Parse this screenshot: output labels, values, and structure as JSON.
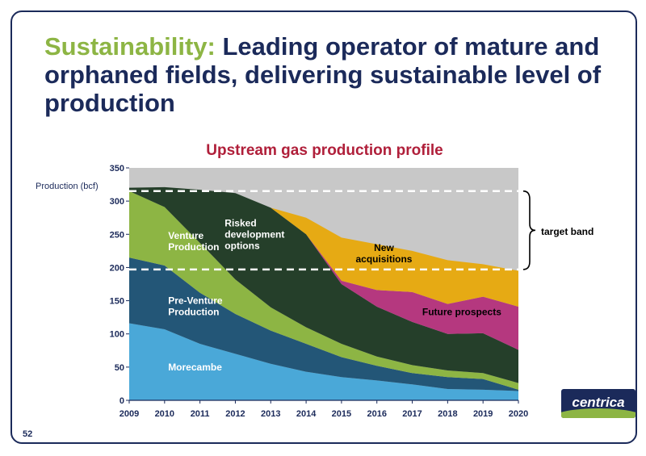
{
  "slide": {
    "title_accent": "Sustainability:",
    "title_rest": "Leading operator of mature and orphaned fields, delivering sustainable level of production",
    "page_number": "52",
    "logo_text": "centrica"
  },
  "colors": {
    "Morecambe": "#4aa8d8",
    "Pre-Venture Production": "#235677",
    "Venture Production": "#8db544",
    "Risked development options": "#253f2a",
    "Future prospects": "#b5387f",
    "New acquisitions": "#e6aa14",
    "background": "#c8c8c8",
    "target_line": "#ffffff"
  },
  "chart_data": {
    "type": "area",
    "title": "Upstream gas production profile",
    "ylabel": "Production (bcf)",
    "xlabel": "",
    "x": [
      2009,
      2010,
      2011,
      2012,
      2013,
      2014,
      2015,
      2016,
      2017,
      2018,
      2019,
      2020
    ],
    "ylim": [
      0,
      350
    ],
    "yticks": [
      0,
      50,
      100,
      150,
      200,
      250,
      300,
      350
    ],
    "stacked": true,
    "series": [
      {
        "name": "Morecambe",
        "label_lines": [
          "Morecambe"
        ],
        "values": [
          116,
          107,
          85,
          70,
          55,
          43,
          35,
          30,
          24,
          17,
          16,
          14
        ],
        "label_pos": [
          2010.1,
          45
        ]
      },
      {
        "name": "Pre-Venture Production",
        "label_lines": [
          "Pre-Venture",
          "Production"
        ],
        "values": [
          99,
          96,
          77,
          60,
          50,
          42,
          30,
          22,
          17,
          18,
          16,
          2
        ],
        "label_pos": [
          2010.1,
          145
        ]
      },
      {
        "name": "Venture Production",
        "label_lines": [
          "Venture",
          "Production"
        ],
        "values": [
          100,
          88,
          75,
          52,
          35,
          25,
          20,
          14,
          12,
          10,
          9,
          10
        ],
        "label_pos": [
          2010.1,
          243
        ]
      },
      {
        "name": "Risked development options",
        "label_lines": [
          "Risked",
          "development",
          "options"
        ],
        "values": [
          5,
          30,
          80,
          130,
          150,
          140,
          90,
          75,
          65,
          55,
          60,
          50
        ],
        "label_pos": [
          2011.7,
          262
        ]
      },
      {
        "name": "Future prospects",
        "label_lines": [
          "Future prospects"
        ],
        "values": [
          0,
          0,
          0,
          0,
          0,
          0,
          5,
          25,
          45,
          45,
          55,
          65
        ],
        "label_pos": [
          2018.4,
          128
        ],
        "label_anchor": "middle"
      },
      {
        "name": "New acquisitions",
        "label_lines": [
          "New",
          "acquisitions"
        ],
        "values": [
          0,
          0,
          0,
          0,
          0,
          25,
          65,
          69,
          62,
          66,
          49,
          54
        ],
        "label_pos": [
          2016.2,
          225
        ],
        "label_anchor": "middle"
      }
    ],
    "annotations": {
      "target_band": {
        "label": "target band",
        "ymin": 197,
        "ymax": 315
      }
    }
  }
}
